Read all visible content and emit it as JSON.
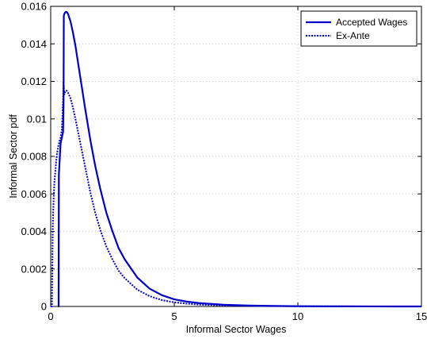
{
  "chart_data": {
    "type": "line",
    "title": "",
    "xlabel": "Informal Sector Wages",
    "ylabel": "Informal Sector pdf",
    "xlim": [
      0,
      15
    ],
    "ylim": [
      0,
      0.016
    ],
    "x_ticks": [
      "0",
      "5",
      "10",
      "15"
    ],
    "y_ticks": [
      "0",
      "0.002",
      "0.004",
      "0.006",
      "0.008",
      "0.01",
      "0.012",
      "0.014",
      "0.016"
    ],
    "grid": true,
    "legend_position": "top-right",
    "series": [
      {
        "name": "Accepted Wages",
        "style": "solid",
        "color": "#0000c8",
        "x": [
          0.3,
          0.32,
          0.33,
          0.37,
          0.4,
          0.45,
          0.5,
          0.52,
          0.53,
          0.55,
          0.6,
          0.65,
          0.7,
          0.8,
          0.9,
          1.0,
          1.2,
          1.4,
          1.6,
          1.8,
          2.0,
          2.25,
          2.5,
          2.75,
          3.0,
          3.5,
          4.0,
          4.5,
          5.0,
          5.5,
          6.0,
          7.0,
          8.0,
          9.0,
          10.0,
          11.0,
          12.0,
          13.0,
          14.0,
          15.0
        ],
        "y": [
          0,
          0,
          0.007,
          0.008,
          0.0087,
          0.009,
          0.0093,
          0.011,
          0.0155,
          0.0156,
          0.0157,
          0.0157,
          0.0156,
          0.0152,
          0.0146,
          0.0139,
          0.0122,
          0.0105,
          0.0089,
          0.0075,
          0.0063,
          0.005,
          0.004,
          0.0031,
          0.0025,
          0.00155,
          0.00095,
          0.0006,
          0.00038,
          0.00026,
          0.00018,
          9e-05,
          5e-05,
          2.5e-05,
          1.4e-05,
          8e-06,
          4e-06,
          2e-06,
          1e-06,
          0.0
        ]
      },
      {
        "name": "Ex-Ante",
        "style": "dotted",
        "color": "#0000c8",
        "x": [
          0.0,
          0.05,
          0.08,
          0.1,
          0.12,
          0.15,
          0.2,
          0.25,
          0.3,
          0.35,
          0.4,
          0.45,
          0.5,
          0.52,
          0.55,
          0.6,
          0.65,
          0.7,
          0.8,
          0.9,
          1.0,
          1.2,
          1.4,
          1.6,
          1.8,
          2.0,
          2.25,
          2.5,
          2.75,
          3.0,
          3.5,
          4.0,
          4.5,
          5.0,
          5.5,
          6.0,
          7.0,
          8.0,
          10.0,
          12.0,
          15.0
        ],
        "y": [
          0,
          0,
          0.004,
          0.005,
          0.0058,
          0.0066,
          0.0074,
          0.0081,
          0.0085,
          0.0088,
          0.009,
          0.0094,
          0.011,
          0.012,
          0.0113,
          0.0115,
          0.0115,
          0.0114,
          0.0111,
          0.0106,
          0.01,
          0.0087,
          0.0074,
          0.0061,
          0.005,
          0.0041,
          0.0032,
          0.0025,
          0.0019,
          0.0015,
          0.0009,
          0.00055,
          0.00034,
          0.00022,
          0.00015,
          0.0001,
          5e-05,
          2.5e-05,
          8e-06,
          2e-06,
          0.0
        ]
      }
    ]
  }
}
